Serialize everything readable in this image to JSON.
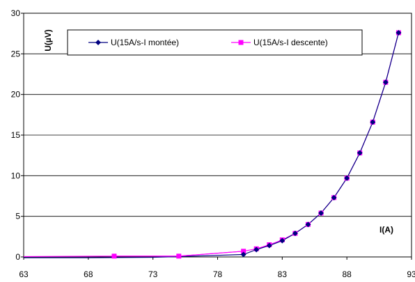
{
  "chart_data": {
    "type": "line",
    "xlabel": "I(A)",
    "ylabel": "U(µV)",
    "xlim": [
      63,
      93
    ],
    "ylim": [
      0,
      30
    ],
    "x_ticks": [
      "63",
      "68",
      "73",
      "78",
      "83",
      "88",
      "93"
    ],
    "y_ticks": [
      "0",
      "5",
      "10",
      "15",
      "20",
      "25",
      "30"
    ],
    "grid": "horizontal",
    "legend_position": "top",
    "series": [
      {
        "name": "U(15A/s-I montée)",
        "color": "#000080",
        "marker": "diamond",
        "x": [
          80,
          81,
          82,
          83,
          84,
          85,
          86,
          87,
          88,
          89,
          90,
          91,
          92
        ],
        "y": [
          0.3,
          0.9,
          1.4,
          2.0,
          2.9,
          4.0,
          5.4,
          7.3,
          9.7,
          12.8,
          16.6,
          21.5,
          27.6
        ]
      },
      {
        "name": "U(15A/s-I descente)",
        "color": "#FF00FF",
        "marker": "square",
        "x": [
          70,
          75,
          80,
          81,
          82,
          83,
          84,
          85,
          86,
          87,
          88,
          89,
          90,
          91,
          92
        ],
        "y": [
          0.1,
          0.1,
          0.7,
          1.0,
          1.5,
          2.1,
          2.9,
          4.0,
          5.4,
          7.3,
          9.7,
          12.8,
          16.6,
          21.5,
          27.6
        ]
      }
    ],
    "extra_segments": [
      {
        "color": "#000080",
        "x": [
          63,
          67,
          68,
          73,
          78,
          80
        ],
        "y": [
          -0.1,
          -0.1,
          -0.1,
          -0.05,
          0.2,
          0.3
        ]
      },
      {
        "color": "#FF00FF",
        "x": [
          63,
          70,
          75,
          80
        ],
        "y": [
          0.05,
          0.1,
          0.1,
          0.7
        ]
      }
    ]
  }
}
